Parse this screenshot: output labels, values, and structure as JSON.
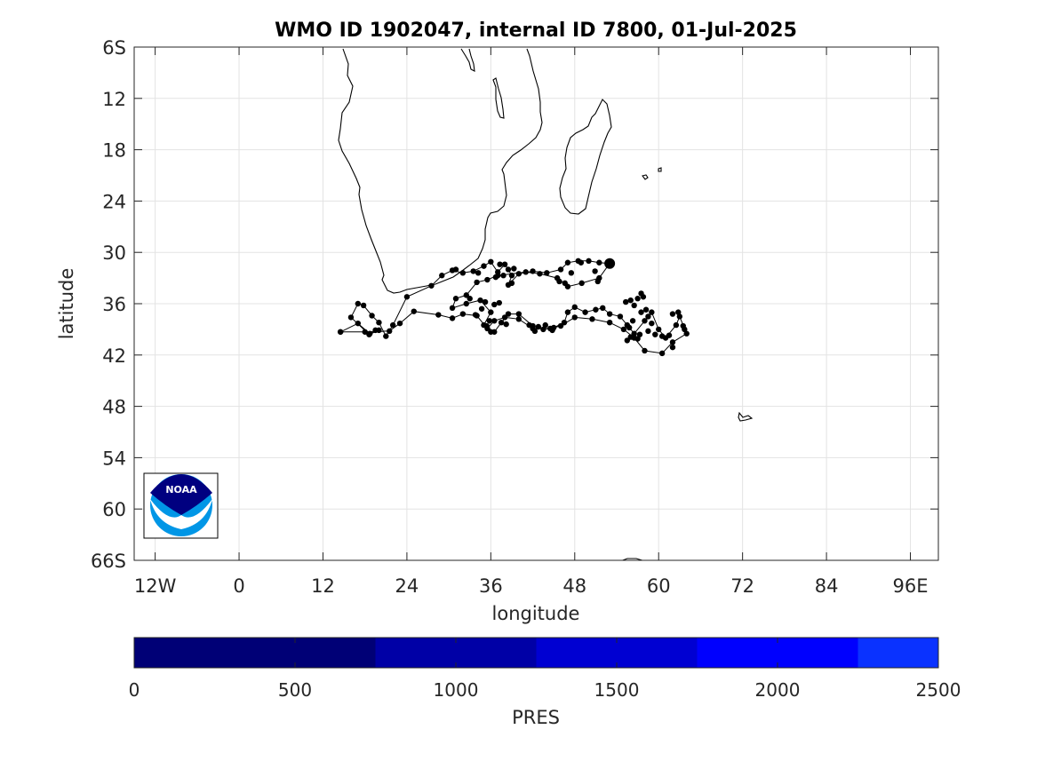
{
  "chart_data": {
    "type": "scatter",
    "title": "WMO ID 1902047, internal ID 7800, 01-Jul-2025",
    "xlabel": "longitude",
    "ylabel": "latitude",
    "xlim": [
      -15,
      100
    ],
    "ylim": [
      -66,
      -6
    ],
    "xticks": [
      -12,
      0,
      12,
      24,
      36,
      48,
      60,
      72,
      84,
      96
    ],
    "xtick_labels": [
      "12W",
      "0",
      "12",
      "24",
      "36",
      "48",
      "60",
      "72",
      "84",
      "96E"
    ],
    "yticks": [
      -6,
      -12,
      -18,
      -24,
      -30,
      -36,
      -42,
      -48,
      -54,
      -60,
      -66
    ],
    "ytick_labels": [
      "6S",
      "12",
      "18",
      "24",
      "30",
      "36",
      "42",
      "48",
      "54",
      "60",
      "66S"
    ],
    "grid": true,
    "series": [
      {
        "marker_color": "#000000",
        "trajectory": [
          [
            14.5,
            -39.3
          ],
          [
            17.0,
            -38.3
          ],
          [
            18.7,
            -39.5
          ],
          [
            19.5,
            -39.1
          ],
          [
            20.0,
            -39.1
          ],
          [
            18.6,
            -39.6
          ],
          [
            16.0,
            -37.6
          ],
          [
            17.0,
            -36.0
          ],
          [
            17.8,
            -36.2
          ],
          [
            19.0,
            -37.4
          ],
          [
            20.0,
            -38.2
          ],
          [
            21.0,
            -39.8
          ],
          [
            22.0,
            -38.5
          ],
          [
            24.0,
            -35.2
          ],
          [
            27.5,
            -33.9
          ],
          [
            29.0,
            -32.7
          ],
          [
            30.5,
            -32.1
          ],
          [
            32.0,
            -32.4
          ],
          [
            33.5,
            -32.2
          ],
          [
            35.0,
            -31.6
          ],
          [
            36.0,
            -31.1
          ],
          [
            37.0,
            -32.3
          ],
          [
            38.0,
            -31.4
          ],
          [
            39.0,
            -32.7
          ],
          [
            38.5,
            -33.8
          ],
          [
            40.0,
            -32.5
          ],
          [
            42.0,
            -32.2
          ],
          [
            44.0,
            -32.4
          ],
          [
            46.0,
            -32.0
          ],
          [
            47.0,
            -31.2
          ],
          [
            48.5,
            -31.0
          ],
          [
            50.0,
            -31.0
          ],
          [
            51.5,
            -31.2
          ],
          [
            53.0,
            -31.3
          ],
          [
            51.5,
            -33.0
          ],
          [
            49.0,
            -33.6
          ],
          [
            47.0,
            -34.0
          ],
          [
            45.5,
            -33.0
          ],
          [
            43.0,
            -32.5
          ],
          [
            41.0,
            -32.3
          ],
          [
            37.0,
            -32.7
          ],
          [
            35.5,
            -33.2
          ],
          [
            34.0,
            -33.5
          ],
          [
            32.5,
            -35.0
          ],
          [
            31.0,
            -35.4
          ],
          [
            30.5,
            -36.5
          ],
          [
            32.5,
            -36.0
          ],
          [
            34.5,
            -35.6
          ],
          [
            36.0,
            -37.0
          ],
          [
            35.0,
            -38.5
          ],
          [
            36.5,
            -39.3
          ],
          [
            37.5,
            -38.2
          ],
          [
            38.5,
            -37.2
          ],
          [
            40.0,
            -37.2
          ],
          [
            42.0,
            -38.6
          ],
          [
            43.5,
            -39.0
          ],
          [
            45.0,
            -38.8
          ],
          [
            46.5,
            -38.2
          ],
          [
            47.0,
            -37.0
          ],
          [
            48.0,
            -36.4
          ],
          [
            49.5,
            -37.0
          ],
          [
            51.0,
            -36.7
          ],
          [
            52.0,
            -36.5
          ],
          [
            53.0,
            -37.2
          ],
          [
            54.5,
            -37.5
          ],
          [
            55.5,
            -38.5
          ],
          [
            56.5,
            -39.5
          ],
          [
            58.0,
            -38.0
          ],
          [
            59.0,
            -37.0
          ],
          [
            60.0,
            -39.0
          ],
          [
            61.0,
            -40.0
          ],
          [
            62.5,
            -38.5
          ],
          [
            63.0,
            -37.5
          ],
          [
            64.0,
            -39.5
          ],
          [
            62.0,
            -40.5
          ],
          [
            60.5,
            -41.8
          ],
          [
            58.0,
            -41.5
          ],
          [
            56.5,
            -40.0
          ],
          [
            55.0,
            -39.0
          ],
          [
            53.0,
            -38.2
          ],
          [
            50.5,
            -37.8
          ],
          [
            48.0,
            -37.6
          ],
          [
            46.0,
            -38.6
          ],
          [
            44.5,
            -38.9
          ],
          [
            42.0,
            -38.9
          ],
          [
            40.0,
            -37.8
          ],
          [
            38.0,
            -37.6
          ],
          [
            36.5,
            -38.0
          ],
          [
            35.5,
            -38.9
          ],
          [
            34.0,
            -37.4
          ],
          [
            32.0,
            -37.2
          ],
          [
            30.5,
            -37.7
          ],
          [
            28.5,
            -37.3
          ],
          [
            25.0,
            -36.9
          ],
          [
            23.0,
            -38.3
          ],
          [
            21.5,
            -39.2
          ],
          [
            18.0,
            -39.3
          ],
          [
            14.5,
            -39.3
          ]
        ],
        "extra_points": [
          [
            33.0,
            -35.4
          ],
          [
            35.2,
            -35.8
          ],
          [
            36.5,
            -36.1
          ],
          [
            37.2,
            -35.9
          ],
          [
            34.7,
            -36.6
          ],
          [
            35.4,
            -38.6
          ],
          [
            36.0,
            -39.3
          ],
          [
            35.8,
            -38.0
          ],
          [
            33.8,
            -37.3
          ],
          [
            38.2,
            -38.4
          ],
          [
            41.5,
            -38.5
          ],
          [
            42.3,
            -39.2
          ],
          [
            43.8,
            -38.5
          ],
          [
            44.8,
            -39.1
          ],
          [
            42.8,
            -38.7
          ],
          [
            55.3,
            -35.8
          ],
          [
            56.0,
            -35.6
          ],
          [
            57.0,
            -35.4
          ],
          [
            56.5,
            -36.2
          ],
          [
            57.5,
            -37.0
          ],
          [
            58.2,
            -36.7
          ],
          [
            58.5,
            -37.5
          ],
          [
            59.0,
            -38.3
          ],
          [
            59.5,
            -39.6
          ],
          [
            58.5,
            -39.2
          ],
          [
            57.3,
            -39.6
          ],
          [
            56.0,
            -39.9
          ],
          [
            55.5,
            -40.3
          ],
          [
            57.0,
            -40.1
          ],
          [
            62.0,
            -37.2
          ],
          [
            62.8,
            -37.0
          ],
          [
            63.5,
            -38.6
          ],
          [
            63.7,
            -39.0
          ],
          [
            60.5,
            -39.8
          ],
          [
            61.5,
            -39.7
          ],
          [
            62.0,
            -41.1
          ],
          [
            55.8,
            -38.8
          ],
          [
            56.3,
            -38.0
          ],
          [
            37.8,
            -32.7
          ],
          [
            38.5,
            -32.0
          ],
          [
            39.3,
            -31.9
          ],
          [
            39.0,
            -33.6
          ],
          [
            36.7,
            -32.9
          ],
          [
            37.3,
            -31.4
          ],
          [
            47.5,
            -32.4
          ],
          [
            46.6,
            -33.6
          ],
          [
            45.8,
            -33.4
          ],
          [
            50.9,
            -32.2
          ],
          [
            51.3,
            -33.4
          ],
          [
            48.9,
            -31.2
          ],
          [
            34.2,
            -32.4
          ],
          [
            31.0,
            -32.0
          ],
          [
            57.5,
            -34.8
          ],
          [
            57.8,
            -35.2
          ]
        ],
        "last_point": [
          53.0,
          -31.3
        ]
      }
    ],
    "colorbar": {
      "label": "PRES",
      "range": [
        0,
        2500
      ],
      "ticks": [
        0,
        500,
        1000,
        1500,
        2000,
        2500
      ],
      "bands": [
        {
          "from": 0,
          "to": 750,
          "color": "#000076"
        },
        {
          "from": 750,
          "to": 1250,
          "color": "#0000a6"
        },
        {
          "from": 1250,
          "to": 1750,
          "color": "#0000d2"
        },
        {
          "from": 1750,
          "to": 2250,
          "color": "#0000fe"
        },
        {
          "from": 2250,
          "to": 2500,
          "color": "#0a32ff"
        }
      ]
    },
    "logo": {
      "text": "NOAA",
      "colors": {
        "dark": "#000080",
        "light": "#0096e6"
      }
    }
  }
}
